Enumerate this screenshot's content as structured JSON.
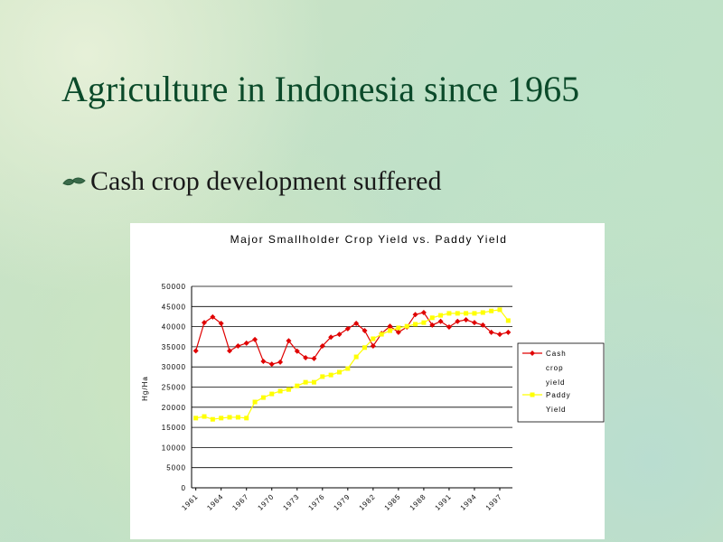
{
  "slide": {
    "title": "Agriculture in Indonesia since 1965",
    "bullet": "Cash crop development suffered"
  },
  "chart_data": {
    "type": "line",
    "title": "Major Smallholder Crop Yield vs. Paddy Yield",
    "y_label": "Hg/Ha",
    "categories": [
      "1961",
      null,
      null,
      "1964",
      null,
      null,
      "1967",
      null,
      null,
      "1970",
      null,
      null,
      "1973",
      null,
      null,
      "1976",
      null,
      null,
      "1979",
      null,
      null,
      "1982",
      null,
      null,
      "1985",
      null,
      null,
      "1988",
      null,
      null,
      "1991",
      null,
      null,
      "1994",
      null,
      null,
      "1997",
      null
    ],
    "series": [
      {
        "name": "Cash crop yield",
        "color": "#e00000",
        "marker": "diamond",
        "values": [
          34000,
          41000,
          42400,
          40800,
          34000,
          35200,
          35900,
          36800,
          31400,
          30700,
          31200,
          36500,
          33900,
          32300,
          32100,
          35200,
          37400,
          38100,
          39500,
          40800,
          39000,
          35200,
          38300,
          40100,
          38600,
          39900,
          43000,
          43500,
          40400,
          41300,
          39900,
          41300,
          41700,
          41000,
          40400,
          38600,
          38100,
          38600
        ]
      },
      {
        "name": "Paddy Yield",
        "color": "#ffff00",
        "marker": "square",
        "values": [
          17300,
          17700,
          17000,
          17300,
          17500,
          17500,
          17300,
          21300,
          22400,
          23300,
          24000,
          24400,
          25300,
          26200,
          26200,
          27600,
          28000,
          28700,
          29600,
          32500,
          34800,
          37000,
          38100,
          39000,
          39700,
          40100,
          40600,
          41000,
          42200,
          42800,
          43300,
          43300,
          43300,
          43300,
          43500,
          43900,
          44200,
          41500
        ]
      }
    ],
    "ylim": [
      0,
      50000
    ],
    "yticks": [
      0,
      5000,
      10000,
      15000,
      20000,
      25000,
      30000,
      35000,
      40000,
      45000,
      50000
    ],
    "grid": true,
    "legend": "right"
  }
}
